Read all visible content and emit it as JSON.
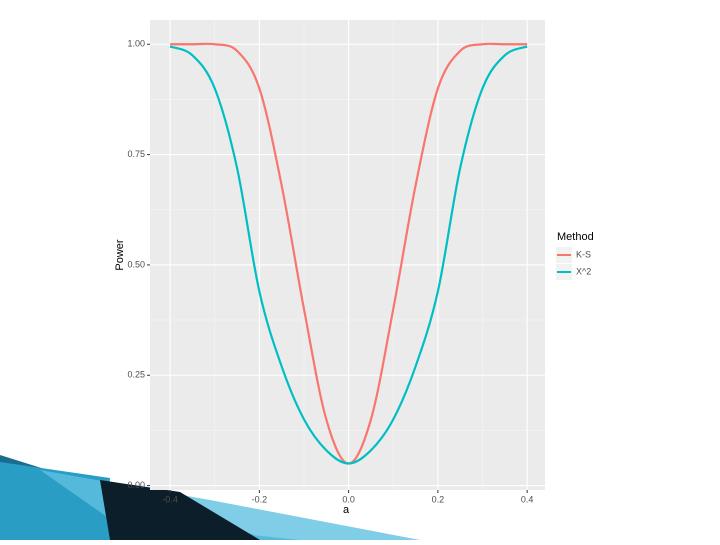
{
  "chart_data": {
    "type": "line",
    "x": [
      -0.4,
      -0.35,
      -0.3,
      -0.25,
      -0.2,
      -0.15,
      -0.1,
      -0.05,
      0,
      0.05,
      0.1,
      0.15,
      0.2,
      0.25,
      0.3,
      0.35,
      0.4
    ],
    "series": [
      {
        "name": "K-S",
        "color": "#F8766D",
        "values": [
          1.0,
          1.0,
          1.0,
          0.985,
          0.9,
          0.68,
          0.4,
          0.15,
          0.05,
          0.15,
          0.4,
          0.68,
          0.9,
          0.985,
          1.0,
          1.0,
          1.0
        ]
      },
      {
        "name": "X^2",
        "color": "#00BFC4",
        "values": [
          0.995,
          0.975,
          0.9,
          0.72,
          0.44,
          0.27,
          0.15,
          0.08,
          0.05,
          0.08,
          0.15,
          0.27,
          0.44,
          0.72,
          0.9,
          0.975,
          0.995
        ]
      }
    ],
    "xlabel": "a",
    "ylabel": "Power",
    "legend_title": "Method",
    "legend": "right",
    "xlim": [
      -0.445,
      0.44
    ],
    "ylim": [
      -0.01,
      1.055
    ],
    "xticks": [
      -0.4,
      -0.2,
      {
        "value": 0,
        "label": "0.0"
      },
      0.2,
      0.4
    ],
    "yticks": [
      {
        "value": 0,
        "label": "0.00"
      },
      {
        "value": 0.25,
        "label": "0.25"
      },
      {
        "value": 0.5,
        "label": "0.50"
      },
      {
        "value": 0.75,
        "label": "0.75"
      },
      {
        "value": 1,
        "label": "1.00"
      }
    ],
    "grid": true
  }
}
